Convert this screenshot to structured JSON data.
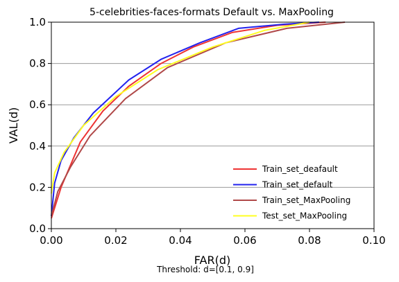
{
  "chart_data": {
    "type": "line",
    "title": "5-celebrities-faces-formats Default vs. MaxPooling",
    "xlabel": "FAR(d)",
    "ylabel": "VAL(d)",
    "footnote": "Threshold: d=[0.1, 0.9]",
    "xlim": [
      0.0,
      0.1
    ],
    "ylim": [
      0.0,
      1.0
    ],
    "xticks": [
      "0.00",
      "0.02",
      "0.04",
      "0.06",
      "0.08",
      "0.10"
    ],
    "yticks": [
      "0.0",
      "0.2",
      "0.4",
      "0.6",
      "0.8",
      "1.0"
    ],
    "grid": "horizontal",
    "legend_position": "lower-right",
    "series": [
      {
        "name": "Train_set_deafault",
        "color": "#ee3333",
        "points": [
          [
            0.0,
            0.05
          ],
          [
            0.003,
            0.2
          ],
          [
            0.009,
            0.42
          ],
          [
            0.016,
            0.57
          ],
          [
            0.024,
            0.69
          ],
          [
            0.034,
            0.8
          ],
          [
            0.044,
            0.88
          ],
          [
            0.056,
            0.95
          ],
          [
            0.07,
            0.985
          ],
          [
            0.085,
            1.0
          ]
        ]
      },
      {
        "name": "Train_set_default",
        "color": "#2222ee",
        "points": [
          [
            0.0,
            0.06
          ],
          [
            0.001,
            0.22
          ],
          [
            0.003,
            0.33
          ],
          [
            0.007,
            0.44
          ],
          [
            0.013,
            0.56
          ],
          [
            0.024,
            0.72
          ],
          [
            0.034,
            0.82
          ],
          [
            0.046,
            0.9
          ],
          [
            0.058,
            0.97
          ],
          [
            0.072,
            0.99
          ],
          [
            0.083,
            1.0
          ]
        ]
      },
      {
        "name": "Train_set_MaxPooling",
        "color": "#b04848",
        "points": [
          [
            0.0,
            0.06
          ],
          [
            0.002,
            0.18
          ],
          [
            0.006,
            0.3
          ],
          [
            0.012,
            0.45
          ],
          [
            0.023,
            0.63
          ],
          [
            0.036,
            0.78
          ],
          [
            0.054,
            0.9
          ],
          [
            0.073,
            0.97
          ],
          [
            0.091,
            1.0
          ]
        ]
      },
      {
        "name": "Test_set_MaxPooling",
        "color": "#ffff22",
        "points": [
          [
            0.0,
            0.17
          ],
          [
            0.001,
            0.27
          ],
          [
            0.004,
            0.37
          ],
          [
            0.01,
            0.5
          ],
          [
            0.02,
            0.64
          ],
          [
            0.033,
            0.77
          ],
          [
            0.05,
            0.88
          ],
          [
            0.066,
            0.96
          ],
          [
            0.08,
            1.0
          ]
        ]
      }
    ]
  }
}
